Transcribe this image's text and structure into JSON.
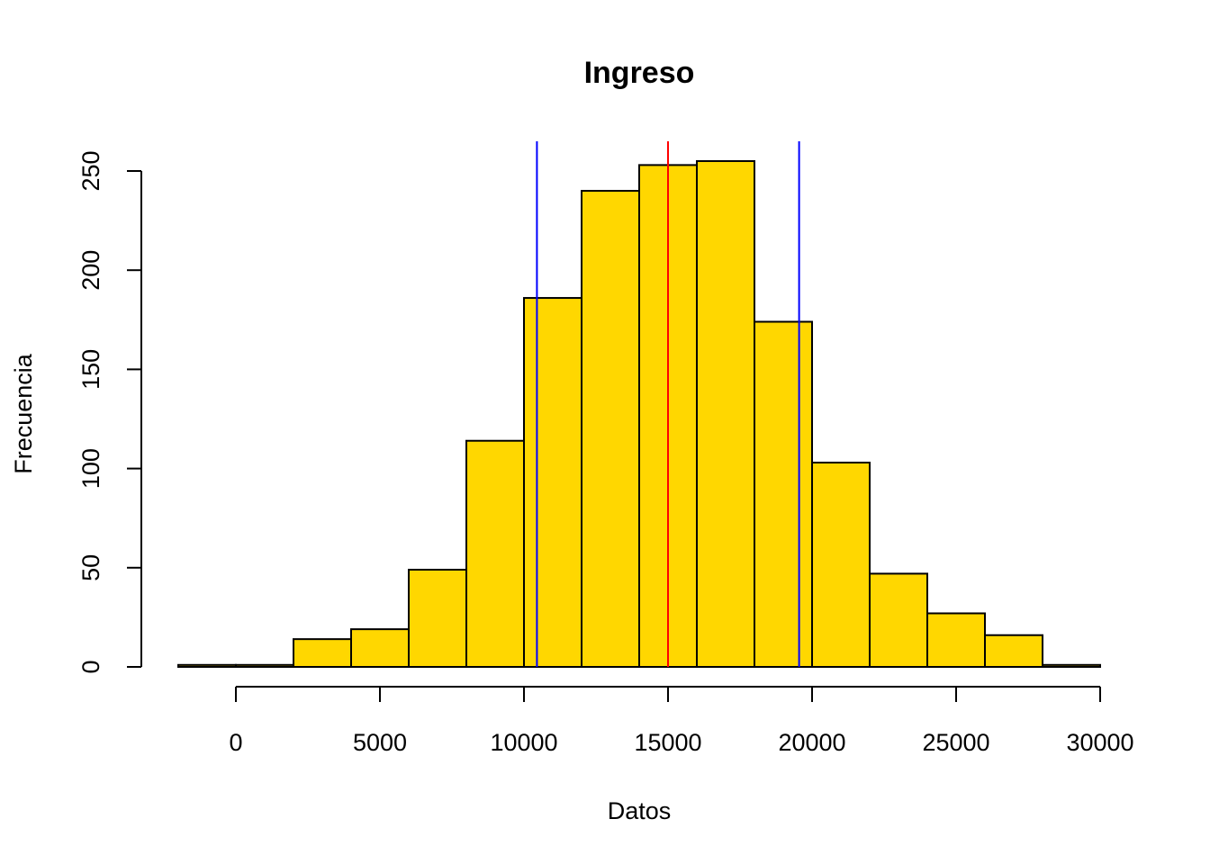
{
  "chart_data": {
    "type": "bar",
    "subtype": "histogram",
    "title": "Ingreso",
    "xlabel": "Datos",
    "ylabel": "Frecuencia",
    "bin_edges": [
      -2000,
      0,
      2000,
      4000,
      6000,
      8000,
      10000,
      12000,
      14000,
      16000,
      18000,
      20000,
      22000,
      24000,
      26000,
      28000,
      30000
    ],
    "values": [
      1,
      1,
      14,
      19,
      49,
      114,
      186,
      240,
      253,
      255,
      174,
      103,
      47,
      27,
      16,
      1
    ],
    "bar_color": "#FFD700",
    "xlim": [
      -2000,
      30000
    ],
    "ylim": [
      0,
      265
    ],
    "xticks": [
      0,
      5000,
      10000,
      15000,
      20000,
      25000,
      30000
    ],
    "yticks": [
      0,
      50,
      100,
      150,
      200,
      250
    ],
    "vlines": [
      {
        "x": 10450,
        "color": "#0000FF"
      },
      {
        "x": 15000,
        "color": "#FF0000"
      },
      {
        "x": 19550,
        "color": "#0000FF"
      }
    ],
    "grid": false,
    "legend": "none"
  }
}
